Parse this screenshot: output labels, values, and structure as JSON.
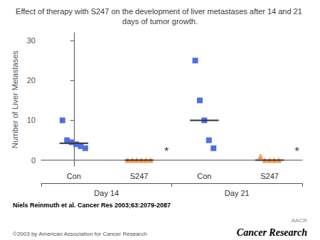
{
  "chart_data": {
    "type": "scatter",
    "title": "Effect of therapy with S247 on the development of liver metastases after 14 and 21 days of tumor growth.",
    "ylabel": "Number of Liver Metastases",
    "categories": [
      "Con",
      "S247",
      "Con",
      "S247"
    ],
    "category_groups": [
      "Day 14",
      "Day 14",
      "Day 21",
      "Day 21"
    ],
    "series": [
      {
        "name": "Con",
        "marker": "square",
        "values": [
          [
            10,
            5,
            4.5,
            4,
            3.5,
            3
          ],
          null,
          [
            25,
            15,
            10,
            5,
            3
          ],
          null
        ],
        "medians": [
          4.25,
          null,
          10,
          null
        ]
      },
      {
        "name": "S247",
        "marker": "triangle",
        "values": [
          null,
          [
            0,
            0,
            0,
            0,
            0,
            0
          ],
          null,
          [
            1,
            0,
            0,
            0,
            0
          ]
        ],
        "medians": [
          null,
          0,
          null,
          0
        ]
      }
    ],
    "significance": [
      null,
      "*",
      null,
      "*"
    ],
    "significance_y": 0.8,
    "ylim": [
      -1.5,
      32
    ],
    "yticks": [
      0,
      10,
      20,
      30
    ],
    "grid": false,
    "annotations": [
      "Niels Reinmuth et al. Cancer Res 2003;63:2079-2087",
      "©2003 by American Association for Cancer Research",
      "AACR",
      "Cancer Research"
    ]
  }
}
